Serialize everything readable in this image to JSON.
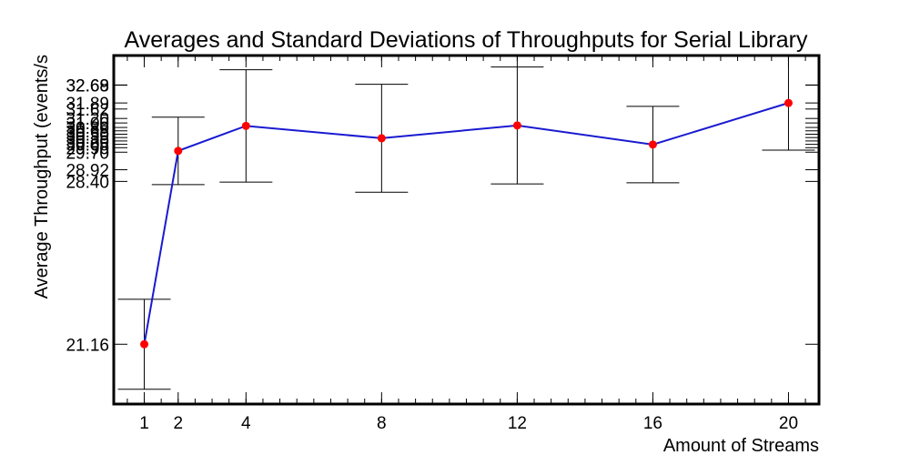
{
  "chart_data": {
    "type": "line",
    "title": "Averages and Standard Deviations of Throughputs for Serial Library",
    "xlabel": "Amount of Streams",
    "ylabel": "Average Throughput (events/s",
    "x": [
      1,
      2,
      4,
      8,
      12,
      16,
      20
    ],
    "x_tick_labels": [
      "1",
      "2",
      "4",
      "8",
      "12",
      "16",
      "20"
    ],
    "xlim": [
      0.1,
      20.9
    ],
    "ylim": [
      18.5,
      34.0
    ],
    "y_tick_labels": [
      "21.16",
      "28.40",
      "28.92",
      "29.70",
      "29.90",
      "30.05",
      "30.20",
      "30.35",
      "30.50",
      "30.65",
      "30.80",
      "31.00",
      "31.20",
      "31.62",
      "31.89",
      "32.68",
      "32.69"
    ],
    "series": [
      {
        "values": [
          21.16,
          29.76,
          30.87,
          30.32,
          30.89,
          30.04,
          31.89
        ],
        "errors": [
          2.0,
          1.5,
          2.5,
          2.4,
          2.6,
          1.7,
          2.1
        ],
        "line_color": "#1a1ad1",
        "marker_color": "#ff0000"
      }
    ],
    "grid": false,
    "legend": "none"
  }
}
